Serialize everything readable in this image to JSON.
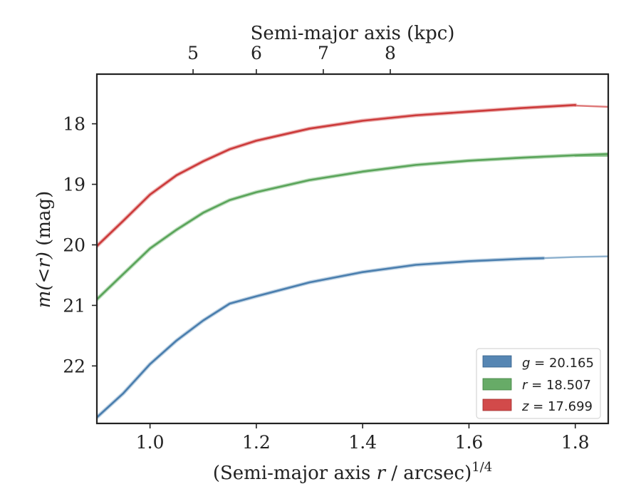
{
  "chart_data": {
    "type": "line",
    "x_axis": {
      "label_prefix": "(Semi-major axis ",
      "label_var": "r",
      "label_mid": " / arcsec)",
      "label_sup": "1/4",
      "xlim": [
        0.9,
        1.862
      ],
      "ticks": [
        1.0,
        1.2,
        1.4,
        1.6,
        1.8
      ],
      "tick_labels": [
        "1.0",
        "1.2",
        "1.4",
        "1.6",
        "1.8"
      ]
    },
    "y_axis": {
      "label_math": "m(<r)",
      "label_unit": " (mag)",
      "ylim": [
        22.95,
        17.18
      ],
      "inverted": true,
      "ticks": [
        18,
        19,
        20,
        21,
        22
      ],
      "tick_labels": [
        "18",
        "19",
        "20",
        "21",
        "22"
      ]
    },
    "top_axis": {
      "label": "Semi-major axis (kpc)",
      "ticks_kpc": [
        5,
        6,
        7,
        8
      ],
      "tick_labels": [
        "5",
        "6",
        "7",
        "8"
      ],
      "tick_positions_x": [
        1.081,
        1.2,
        1.326,
        1.452
      ]
    },
    "legend": {
      "position": "lower-right",
      "entries": [
        {
          "var": "g",
          "value": "20.165",
          "color": "#5686b3"
        },
        {
          "var": "r",
          "value": "18.507",
          "color": "#67ab67"
        },
        {
          "var": "z",
          "value": "17.699",
          "color": "#d24a4a"
        }
      ]
    },
    "series": [
      {
        "band": "g",
        "color": "#4a7eae",
        "model_color": "#8fb2cf",
        "x": [
          0.9,
          0.95,
          1.0,
          1.05,
          1.1,
          1.15,
          1.2,
          1.3,
          1.4,
          1.5,
          1.6,
          1.7,
          1.74
        ],
        "y": [
          22.85,
          22.45,
          21.97,
          21.58,
          21.25,
          20.97,
          20.85,
          20.62,
          20.45,
          20.33,
          20.27,
          20.23,
          20.22
        ],
        "model_x": [
          1.74,
          1.8,
          1.862
        ],
        "model_y": [
          20.22,
          20.2,
          20.19
        ]
      },
      {
        "band": "r",
        "color": "#5aa45a",
        "model_color": "#8cc48c",
        "x": [
          0.9,
          0.95,
          1.0,
          1.05,
          1.1,
          1.15,
          1.2,
          1.3,
          1.4,
          1.5,
          1.6,
          1.7,
          1.8,
          1.862
        ],
        "y": [
          20.9,
          20.48,
          20.06,
          19.75,
          19.47,
          19.26,
          19.13,
          18.93,
          18.79,
          18.68,
          18.61,
          18.56,
          18.52,
          18.5
        ],
        "model_x": [
          1.8,
          1.862
        ],
        "model_y": [
          18.53,
          18.53
        ]
      },
      {
        "band": "z",
        "color": "#cc3a3a",
        "model_color": "#de7a7a",
        "x": [
          0.9,
          0.95,
          1.0,
          1.05,
          1.1,
          1.15,
          1.2,
          1.3,
          1.4,
          1.5,
          1.6,
          1.7,
          1.8
        ],
        "y": [
          20.02,
          19.6,
          19.17,
          18.85,
          18.62,
          18.42,
          18.28,
          18.08,
          17.95,
          17.86,
          17.8,
          17.74,
          17.69
        ],
        "model_x": [
          1.8,
          1.862
        ],
        "model_y": [
          17.7,
          17.72
        ]
      }
    ]
  }
}
